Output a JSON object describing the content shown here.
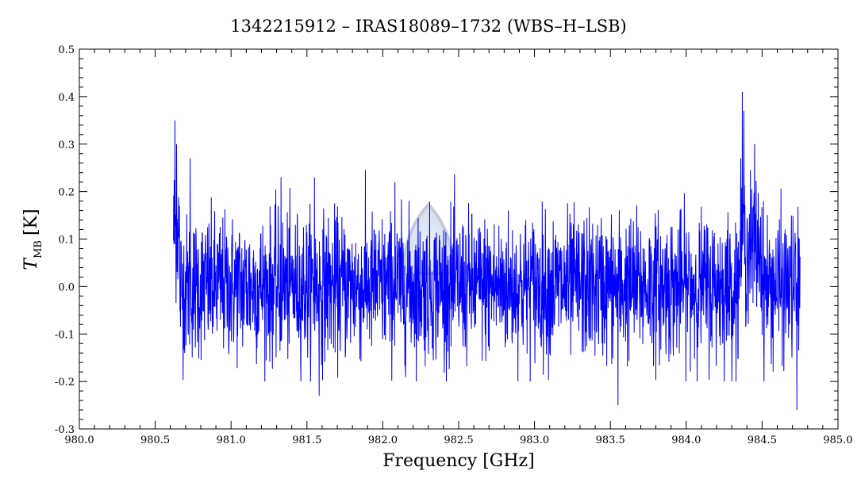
{
  "chart_data": {
    "type": "line",
    "title": "1342215912 – IRAS18089–1732 (WBS–H–LSB)",
    "xlabel": "Frequency [GHz]",
    "ylabel": {
      "symbol": "T",
      "subscript": "MB",
      "unit": "[K]"
    },
    "xlim": [
      980.0,
      985.0
    ],
    "ylim": [
      -0.3,
      0.5
    ],
    "x_ticks": [
      "980.0",
      "981.0",
      "981.5",
      "982.0",
      "982.5",
      "983.0",
      "983.5",
      "984.0",
      "984.5",
      "985.0"
    ],
    "x_tick_values": [
      980.0,
      981.0,
      981.5,
      982.0,
      982.5,
      983.0,
      983.5,
      984.0,
      984.5,
      985.0
    ],
    "x_ticks_extra": {
      "value": 980.5,
      "label": "980.5"
    },
    "y_ticks": [
      "-0.3",
      "-0.2",
      "-0.1",
      "0.0",
      "0.1",
      "0.2",
      "0.3",
      "0.4",
      "0.5"
    ],
    "y_tick_values": [
      -0.3,
      -0.2,
      -0.1,
      0.0,
      0.1,
      0.2,
      0.3,
      0.4,
      0.5
    ],
    "grid": false,
    "line_color": "#0000ff",
    "series": [
      {
        "x_range": [
          980.62,
          984.75
        ],
        "samples": 2400,
        "noise_sigma": 0.075,
        "baseline": 0.0,
        "features": [
          {
            "x": 980.63,
            "y": 0.35
          },
          {
            "x": 980.64,
            "y": 0.3
          },
          {
            "x": 980.73,
            "y": 0.27
          },
          {
            "x": 981.33,
            "y": 0.23
          },
          {
            "x": 981.55,
            "y": 0.23
          },
          {
            "x": 981.58,
            "y": -0.23
          },
          {
            "x": 982.08,
            "y": 0.22
          },
          {
            "x": 983.55,
            "y": -0.25
          },
          {
            "x": 984.37,
            "y": 0.41
          },
          {
            "x": 984.38,
            "y": 0.37
          },
          {
            "x": 984.45,
            "y": 0.3
          },
          {
            "x": 984.73,
            "y": -0.26
          }
        ]
      }
    ]
  },
  "watermark": {
    "colors": [
      "#9aa8c8",
      "#bcd4f0",
      "#fff6a0"
    ]
  }
}
